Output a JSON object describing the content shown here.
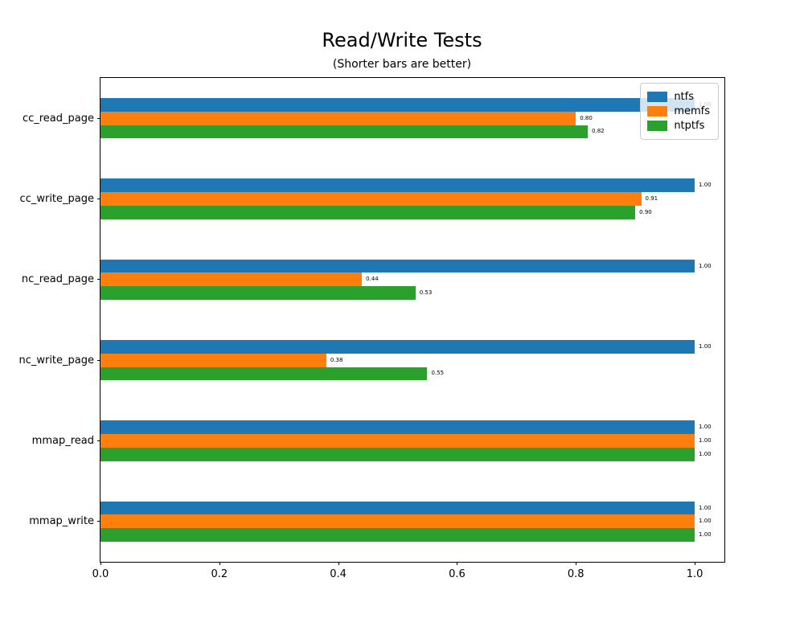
{
  "title": "Read/Write Tests",
  "subtitle": "(Shorter bars are better)",
  "chart_data": {
    "type": "bar",
    "orientation": "horizontal",
    "title": "Read/Write Tests",
    "subtitle": "(Shorter bars are better)",
    "categories": [
      "cc_read_page",
      "cc_write_page",
      "nc_read_page",
      "nc_write_page",
      "mmap_read",
      "mmap_write"
    ],
    "series": [
      {
        "name": "ntfs",
        "color": "#1f77b4",
        "values": [
          1.0,
          1.0,
          1.0,
          1.0,
          1.0,
          1.0
        ]
      },
      {
        "name": "memfs",
        "color": "#ff7f0e",
        "values": [
          0.8,
          0.91,
          0.44,
          0.38,
          1.0,
          1.0
        ]
      },
      {
        "name": "ntptfs",
        "color": "#2ca02c",
        "values": [
          0.82,
          0.9,
          0.53,
          0.55,
          1.0,
          1.0
        ]
      }
    ],
    "bar_value_labels": [
      "1.00",
      "0.80",
      "0.82",
      "1.00",
      "0.91",
      "0.90",
      "1.00",
      "0.44",
      "0.53",
      "1.00",
      "0.38",
      "0.55",
      "1.00",
      "1.00",
      "1.00",
      "1.00",
      "1.00",
      "1.00"
    ],
    "xlabel": "",
    "ylabel": "",
    "xticks": [
      "0.0",
      "0.2",
      "0.4",
      "0.6",
      "0.8",
      "1.0"
    ],
    "xtick_values": [
      0.0,
      0.2,
      0.4,
      0.6,
      0.8,
      1.0
    ],
    "xlim": [
      0,
      1.05
    ],
    "grid": false,
    "legend": {
      "position": "upper right",
      "entries": [
        "ntfs",
        "memfs",
        "ntptfs"
      ]
    }
  }
}
